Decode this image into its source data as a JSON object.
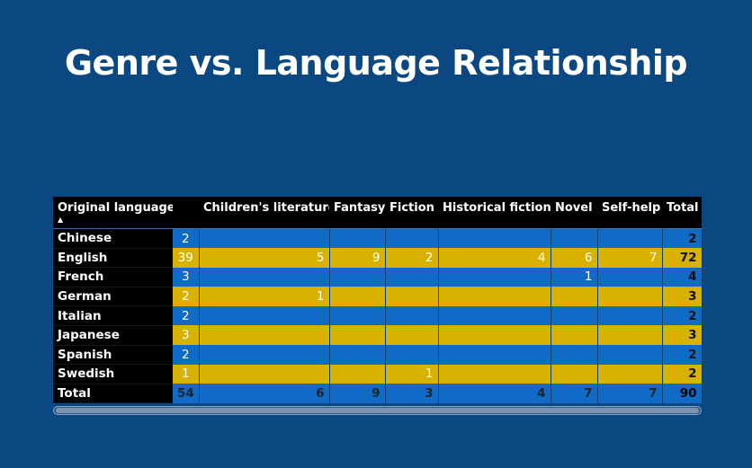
{
  "title": "Genre vs. Language Relationship",
  "matrix": {
    "columns": [
      "Original language",
      "",
      "Children's literature",
      "Fantasy",
      "Fiction",
      "Historical fiction",
      "Novel",
      "Self-help",
      "Total"
    ],
    "sort_indicator": "▲",
    "rows": [
      {
        "label": "Chinese",
        "values": [
          "2",
          "",
          "",
          "",
          "",
          "",
          "",
          "2"
        ],
        "style": "blue"
      },
      {
        "label": "English",
        "values": [
          "39",
          "5",
          "9",
          "2",
          "4",
          "6",
          "7",
          "72"
        ],
        "style": "gold"
      },
      {
        "label": "French",
        "values": [
          "3",
          "",
          "",
          "",
          "",
          "1",
          "",
          "4"
        ],
        "style": "blue"
      },
      {
        "label": "German",
        "values": [
          "2",
          "1",
          "",
          "",
          "",
          "",
          "",
          "3"
        ],
        "style": "gold"
      },
      {
        "label": "Italian",
        "values": [
          "2",
          "",
          "",
          "",
          "",
          "",
          "",
          "2"
        ],
        "style": "blue"
      },
      {
        "label": "Japanese",
        "values": [
          "3",
          "",
          "",
          "",
          "",
          "",
          "",
          "3"
        ],
        "style": "gold"
      },
      {
        "label": "Spanish",
        "values": [
          "2",
          "",
          "",
          "",
          "",
          "",
          "",
          "2"
        ],
        "style": "blue"
      },
      {
        "label": "Swedish",
        "values": [
          "1",
          "",
          "",
          "1",
          "",
          "",
          "",
          "2"
        ],
        "style": "gold"
      }
    ],
    "totals": {
      "label": "Total",
      "values": [
        "54",
        "6",
        "9",
        "3",
        "4",
        "7",
        "7",
        "90"
      ]
    }
  },
  "colors": {
    "background": "#0b4780",
    "row_blue": "#0f6bc6",
    "row_gold": "#d9b100",
    "header": "#000000"
  }
}
